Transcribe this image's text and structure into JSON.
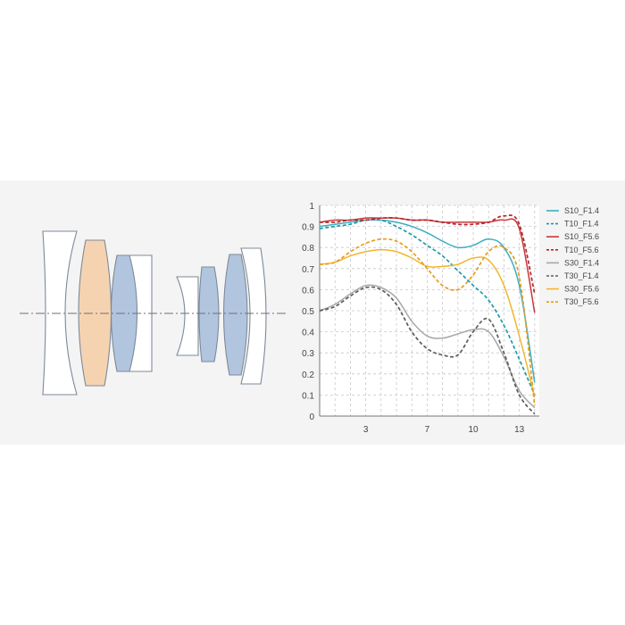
{
  "chart_data": {
    "type": "line",
    "title": "",
    "xlabel": "",
    "ylabel": "",
    "xlim": [
      0,
      14.3
    ],
    "ylim": [
      0,
      1
    ],
    "grid": true,
    "legend_position": "right",
    "xticks": [
      "3",
      "7",
      "10",
      "13"
    ],
    "yticks": [
      "0",
      "0.1",
      "0.2",
      "0.3",
      "0.4",
      "0.5",
      "0.6",
      "0.7",
      "0.8",
      "0.9",
      "1"
    ],
    "x": [
      0,
      1,
      2,
      3,
      4,
      5,
      6,
      7,
      8,
      9,
      10,
      11,
      12,
      13,
      14
    ],
    "series": [
      {
        "name": "S10_F1.4",
        "color": "#3aafc0",
        "dash": false,
        "values": [
          0.9,
          0.91,
          0.92,
          0.93,
          0.93,
          0.92,
          0.9,
          0.87,
          0.83,
          0.8,
          0.81,
          0.84,
          0.8,
          0.62,
          0.16
        ]
      },
      {
        "name": "T10_F1.4",
        "color": "#1d9aab",
        "dash": true,
        "values": [
          0.89,
          0.9,
          0.91,
          0.93,
          0.93,
          0.9,
          0.86,
          0.81,
          0.76,
          0.69,
          0.62,
          0.55,
          0.43,
          0.27,
          0.1
        ]
      },
      {
        "name": "S10_F5.6",
        "color": "#c9373a",
        "dash": false,
        "values": [
          0.92,
          0.93,
          0.93,
          0.94,
          0.94,
          0.94,
          0.93,
          0.93,
          0.92,
          0.92,
          0.92,
          0.92,
          0.93,
          0.89,
          0.49
        ]
      },
      {
        "name": "T10_F5.6",
        "color": "#b3262d",
        "dash": true,
        "values": [
          0.92,
          0.92,
          0.93,
          0.93,
          0.94,
          0.94,
          0.93,
          0.93,
          0.92,
          0.91,
          0.91,
          0.92,
          0.95,
          0.91,
          0.58
        ]
      },
      {
        "name": "S30_F1.4",
        "color": "#a7a7a7",
        "dash": false,
        "values": [
          0.5,
          0.53,
          0.58,
          0.62,
          0.61,
          0.56,
          0.45,
          0.38,
          0.37,
          0.39,
          0.41,
          0.4,
          0.28,
          0.12,
          0.04
        ]
      },
      {
        "name": "T30_F1.4",
        "color": "#5c5c5c",
        "dash": true,
        "values": [
          0.5,
          0.52,
          0.57,
          0.61,
          0.6,
          0.53,
          0.4,
          0.32,
          0.29,
          0.29,
          0.4,
          0.46,
          0.3,
          0.1,
          0.01
        ]
      },
      {
        "name": "S30_F5.6",
        "color": "#f2b630",
        "dash": false,
        "values": [
          0.72,
          0.73,
          0.76,
          0.78,
          0.79,
          0.78,
          0.75,
          0.71,
          0.71,
          0.72,
          0.75,
          0.74,
          0.62,
          0.38,
          0.09
        ]
      },
      {
        "name": "T30_F5.6",
        "color": "#e79b1d",
        "dash": true,
        "values": [
          0.72,
          0.73,
          0.78,
          0.82,
          0.84,
          0.83,
          0.78,
          0.7,
          0.62,
          0.6,
          0.67,
          0.78,
          0.8,
          0.66,
          0.05
        ]
      }
    ]
  },
  "lens_diagram": {
    "element_colors": {
      "plain": "#ffffff",
      "orange": "#f6d3b0",
      "blue": "#b2c5de",
      "outline": "#7d8a99",
      "optical_axis": "#6f6f6f"
    }
  }
}
